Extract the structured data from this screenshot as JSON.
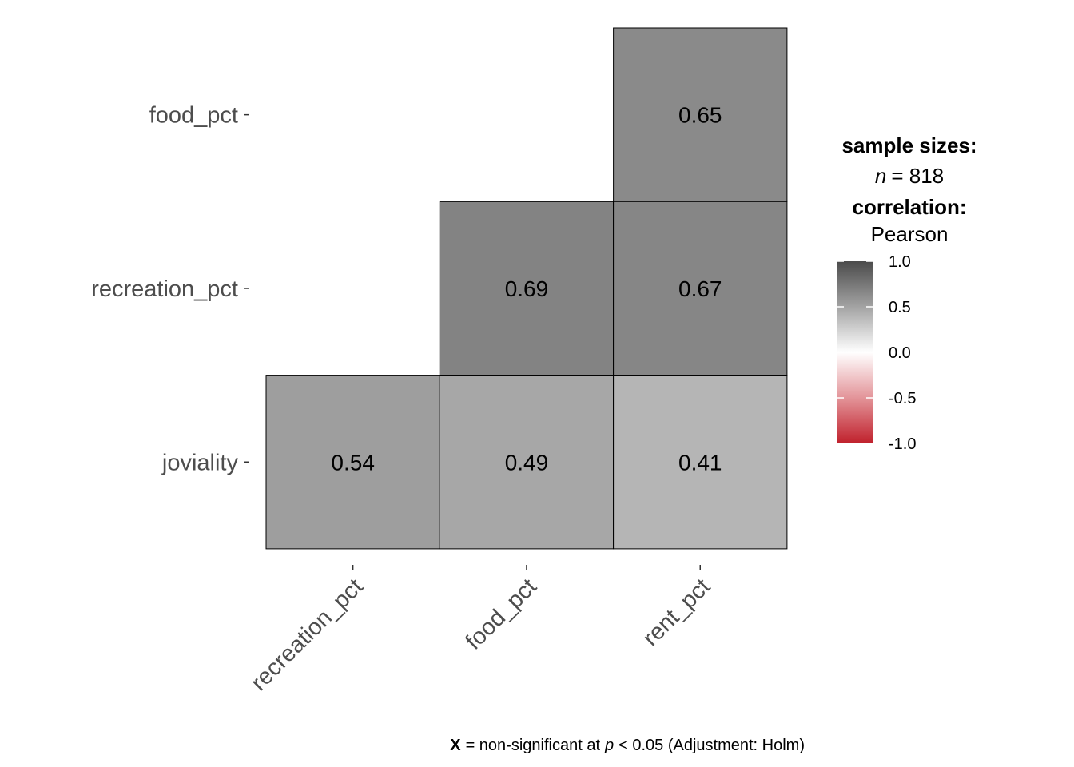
{
  "chart_data": {
    "type": "heatmap",
    "x_categories": [
      "recreation_pct",
      "food_pct",
      "rent_pct"
    ],
    "y_categories": [
      "food_pct",
      "recreation_pct",
      "joviality"
    ],
    "cells": [
      {
        "x": "rent_pct",
        "y": "food_pct",
        "value": 0.65,
        "label": "0.65"
      },
      {
        "x": "food_pct",
        "y": "recreation_pct",
        "value": 0.69,
        "label": "0.69"
      },
      {
        "x": "rent_pct",
        "y": "recreation_pct",
        "value": 0.67,
        "label": "0.67"
      },
      {
        "x": "recreation_pct",
        "y": "joviality",
        "value": 0.54,
        "label": "0.54"
      },
      {
        "x": "food_pct",
        "y": "joviality",
        "value": 0.49,
        "label": "0.49"
      },
      {
        "x": "rent_pct",
        "y": "joviality",
        "value": 0.41,
        "label": "0.41"
      }
    ],
    "color_scale": {
      "low": "#c0212c",
      "mid": "#ffffff",
      "high": "#4b4b4b",
      "limits": [
        -1.0,
        1.0
      ]
    },
    "legend": {
      "title_sample": "sample sizes:",
      "n_label": "n",
      "n_value": "= 818",
      "title_corr": "correlation:",
      "corr_method": "Pearson",
      "ticks": [
        "1.0",
        "0.5",
        "0.0",
        "-0.5",
        "-1.0"
      ]
    },
    "caption": {
      "bold": "X",
      "part1": "= non-significant at",
      "italic": "p",
      "part2": "< 0.05 (Adjustment: Holm)"
    }
  }
}
